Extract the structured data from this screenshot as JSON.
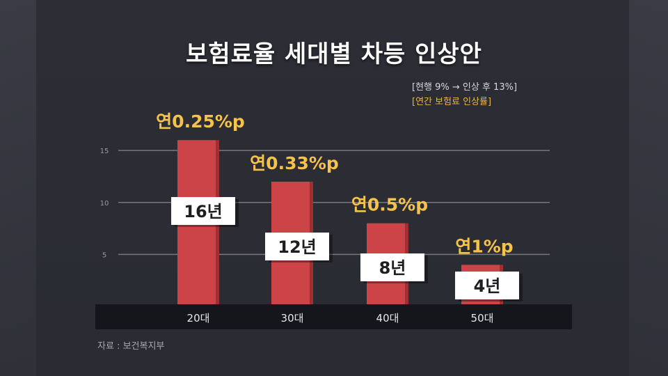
{
  "title": "보험료율 세대별 차등 인상안",
  "note": {
    "line1": "[현행 9% → 인상 후 13%]",
    "line2": "[연간 보험료 인상률]"
  },
  "source": "자료 : 보건복지부",
  "colors": {
    "bar": "#cc4448",
    "bar_side": "#9e2f33",
    "rate": "#f5c24a",
    "label_box": "#ffffff",
    "axis_band": "#15161b"
  },
  "chart_data": {
    "type": "bar",
    "categories": [
      "20대",
      "30대",
      "40대",
      "50대"
    ],
    "values": [
      16,
      12,
      8,
      4
    ],
    "value_labels": [
      "16년",
      "12년",
      "8년",
      "4년"
    ],
    "rate_labels": [
      "연0.25%p",
      "연0.33%p",
      "연0.5%p",
      "연1%p"
    ],
    "yticks": [
      5,
      10,
      15
    ],
    "ylim": [
      0,
      19.5
    ],
    "grid": true,
    "title": "보험료율 세대별 차등 인상안",
    "xlabel": "",
    "ylabel": ""
  }
}
